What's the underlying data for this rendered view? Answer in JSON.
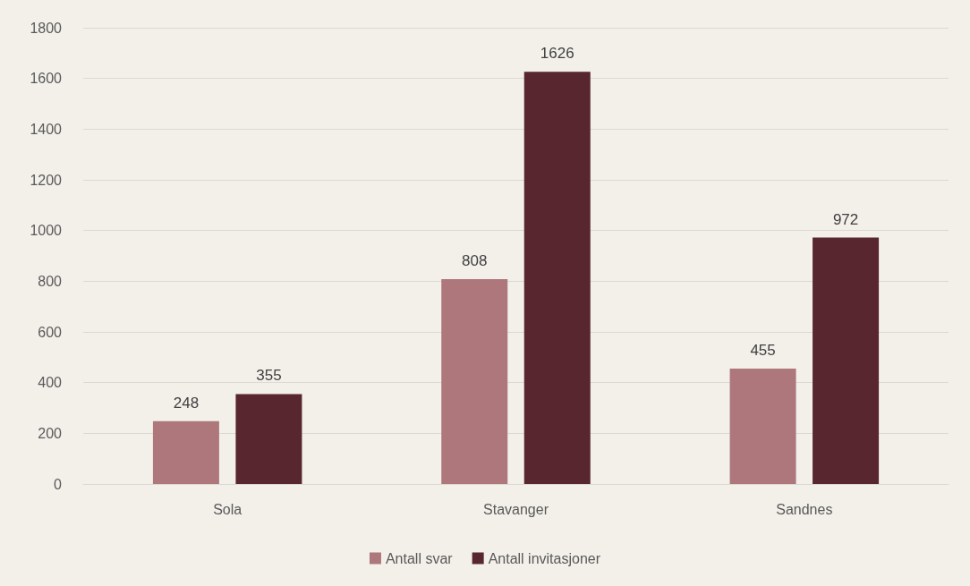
{
  "chart_data": {
    "type": "bar",
    "categories": [
      "Sola",
      "Stavanger",
      "Sandnes"
    ],
    "series": [
      {
        "name": "Antall svar",
        "color": "#ad777c",
        "values": [
          248,
          808,
          455
        ]
      },
      {
        "name": "Antall invitasjoner",
        "color": "#58262f",
        "values": [
          355,
          1626,
          972
        ]
      }
    ],
    "ylim": [
      0,
      1800
    ],
    "yticks": [
      0,
      200,
      400,
      600,
      800,
      1000,
      1200,
      1400,
      1600,
      1800
    ],
    "grid": "y",
    "legend": "bottom",
    "data_labels": true
  }
}
